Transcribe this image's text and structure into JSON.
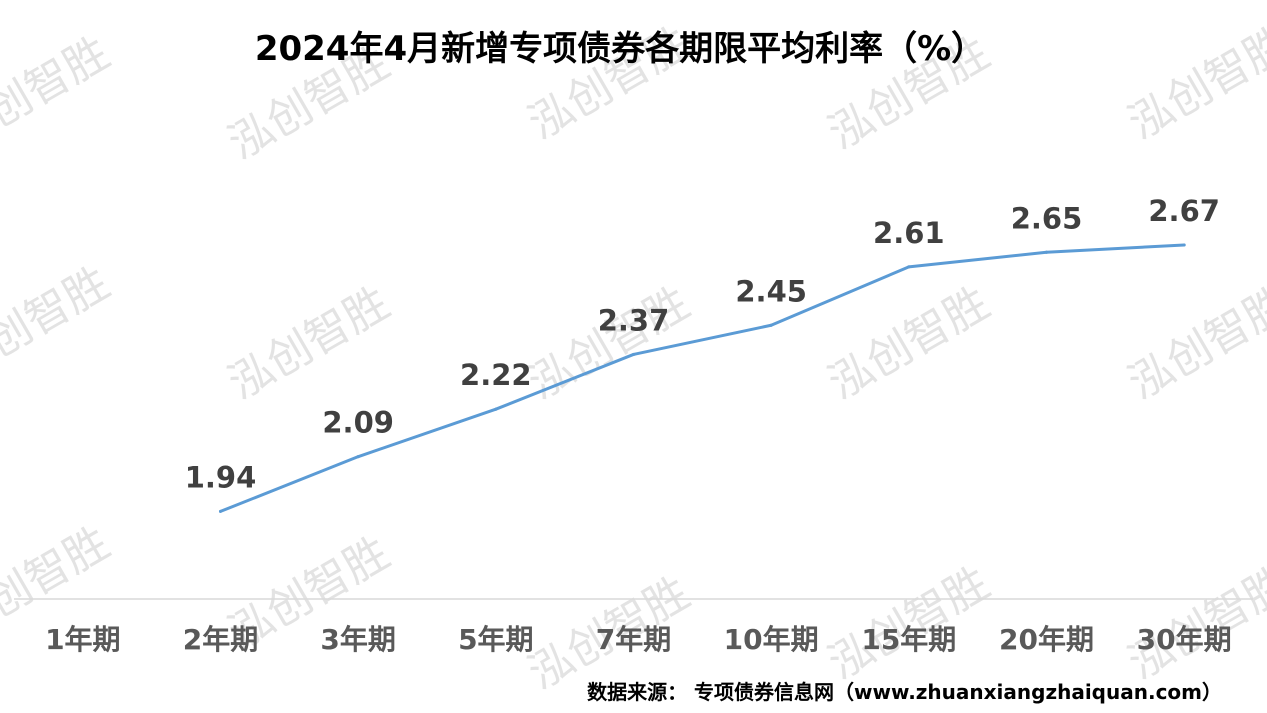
{
  "watermark": "泓创智胜",
  "source_text": "数据来源： 专项债券信息网（www.zhuanxiangzhaiquan.com）",
  "colors": {
    "line": "#5b9bd5",
    "axis": "#d9d9d9",
    "category_text": "#595959",
    "label_text": "#404040"
  },
  "chart_data": {
    "type": "line",
    "title": "2024年4月新增专项债券各期限平均利率（%）",
    "categories": [
      "1年期",
      "2年期",
      "3年期",
      "5年期",
      "7年期",
      "10年期",
      "15年期",
      "20年期",
      "30年期"
    ],
    "values": [
      null,
      1.94,
      2.09,
      2.22,
      2.37,
      2.45,
      2.61,
      2.65,
      2.67
    ],
    "data_labels": [
      "",
      "1.94",
      "2.09",
      "2.22",
      "2.37",
      "2.45",
      "2.61",
      "2.65",
      "2.67"
    ],
    "xlabel": "",
    "ylabel": "",
    "ylim": [
      1.7,
      2.9
    ],
    "grid": false,
    "legend": "none",
    "y_axis_visible": false
  }
}
